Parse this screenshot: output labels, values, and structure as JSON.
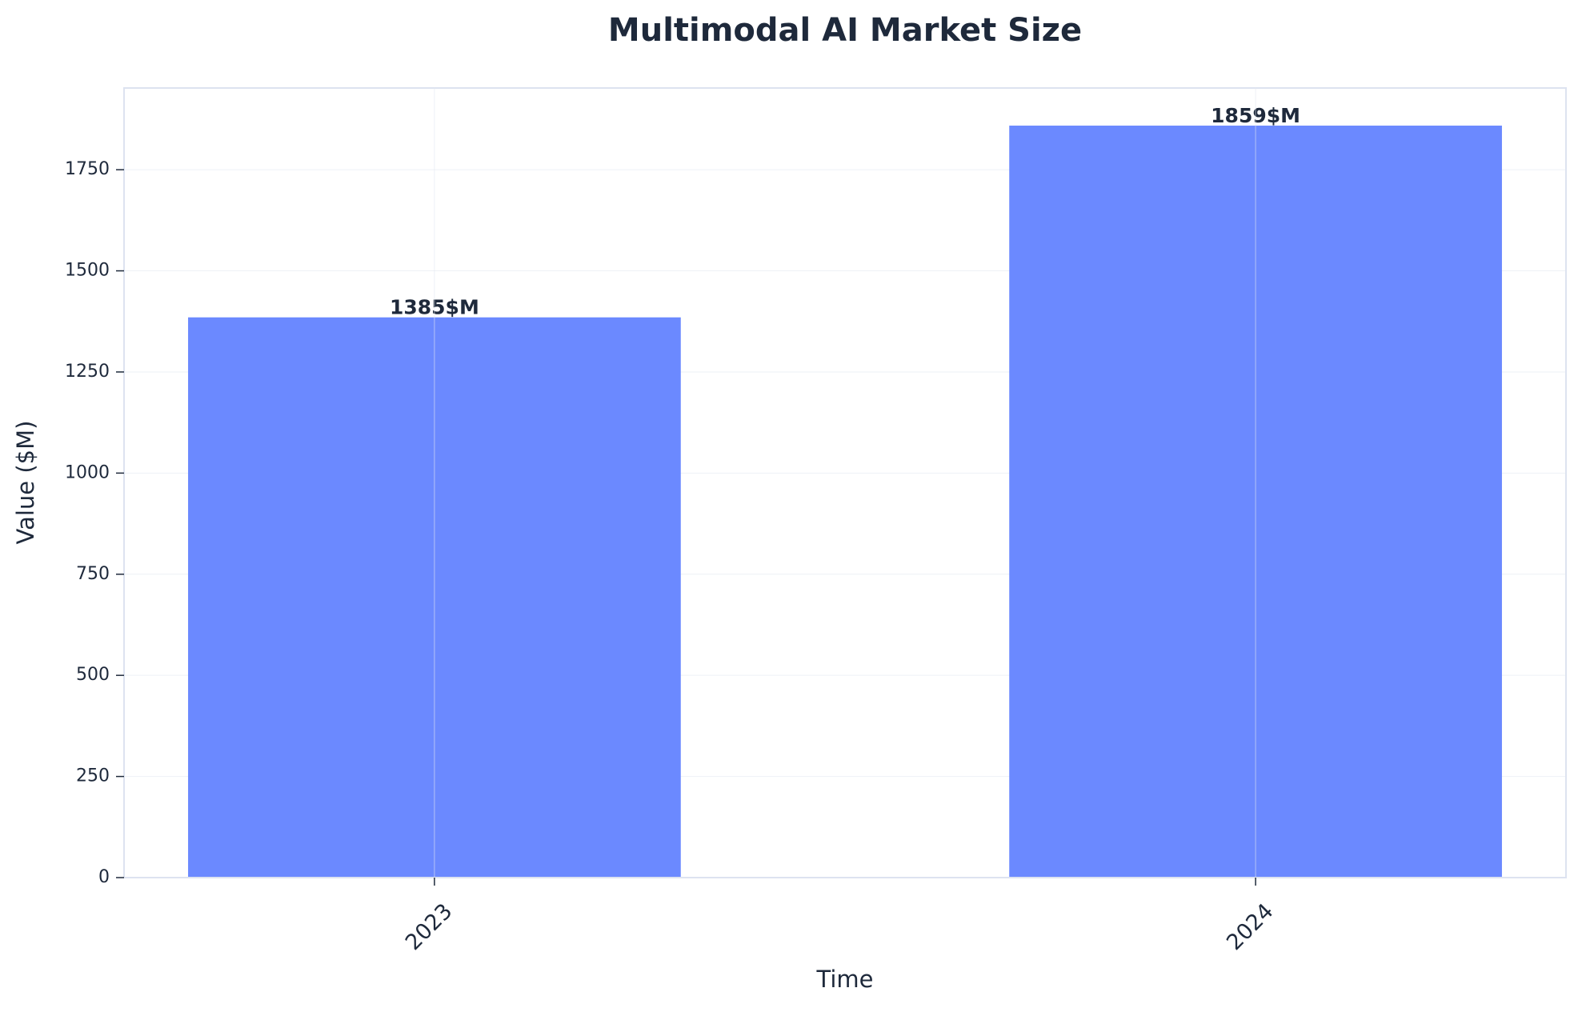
{
  "chart_data": {
    "type": "bar",
    "title": "Multimodal AI Market Size",
    "x_label": "Time",
    "y_label": "Value ($M)",
    "categories": [
      "2023",
      "2024"
    ],
    "values": [
      1385,
      1859
    ],
    "value_labels": [
      "1385$M",
      "1859$M"
    ],
    "color": "#6b89ff",
    "ylim": [
      0,
      1952
    ],
    "yticks": [
      0,
      250,
      500,
      750,
      1000,
      1250,
      1500,
      1750
    ],
    "grid": true
  }
}
